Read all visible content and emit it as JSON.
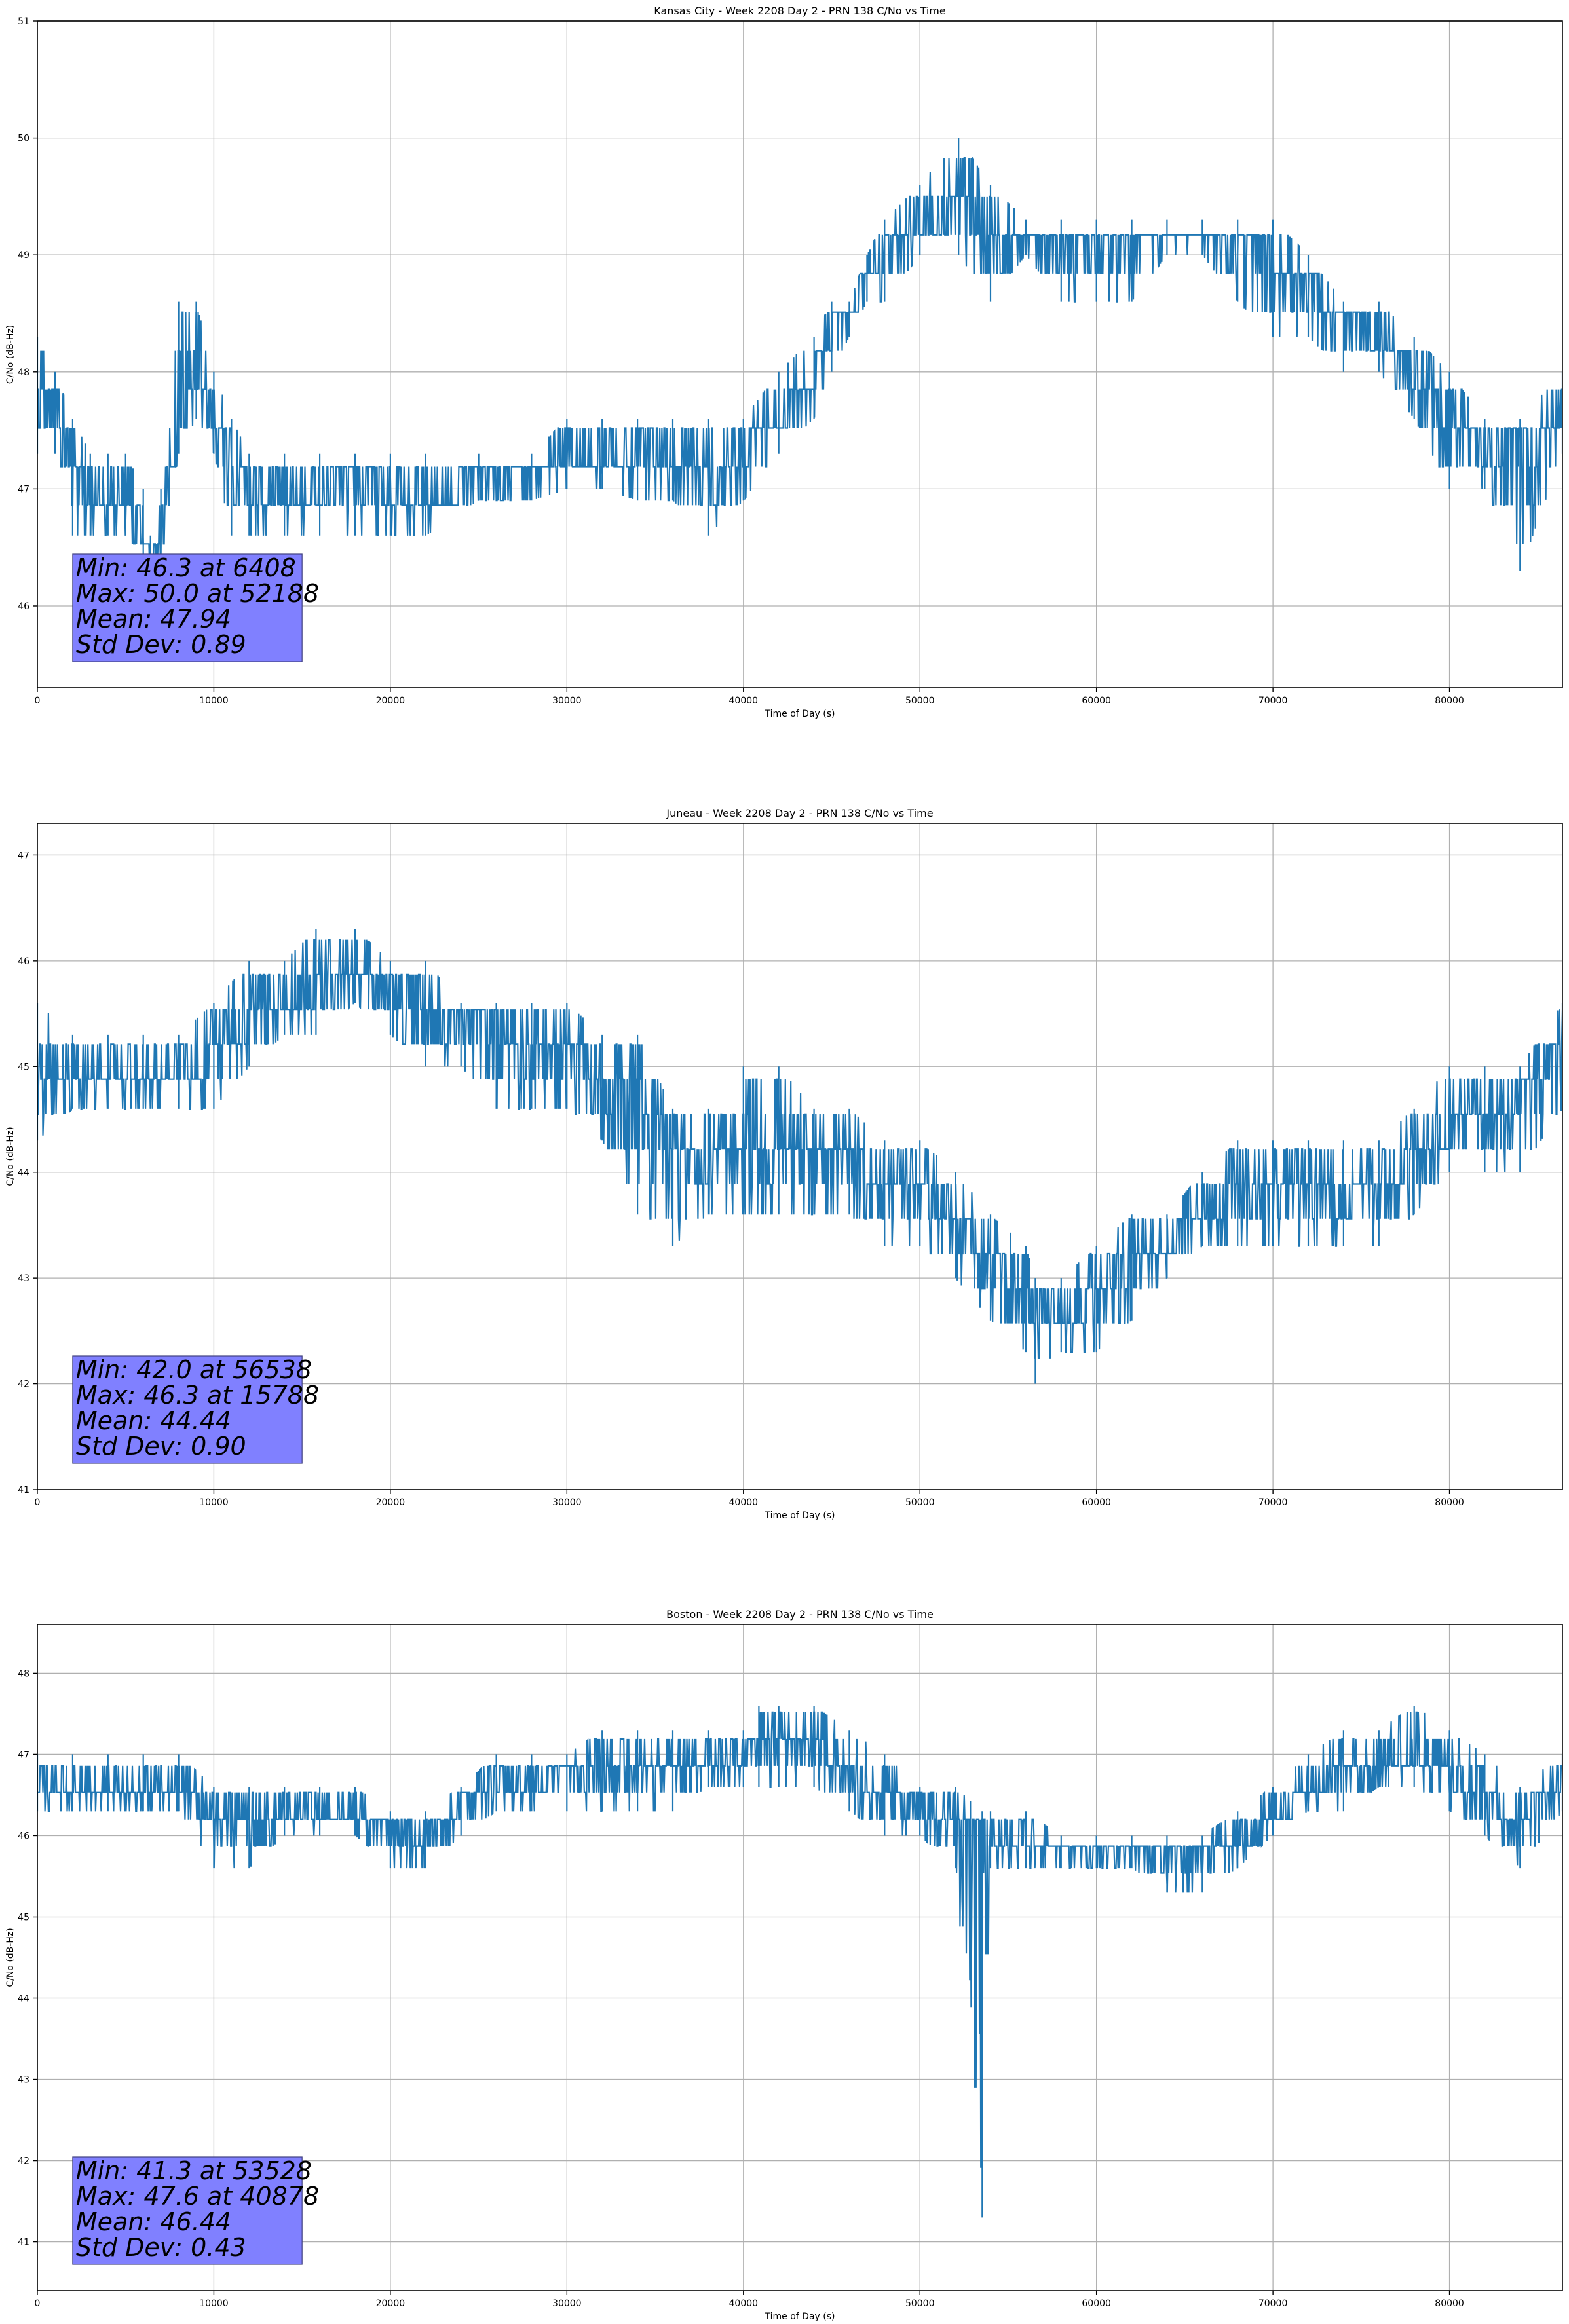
{
  "figure": {
    "background": "#ffffff",
    "line_color": "#1f77b4",
    "grid_color": "#b0b0b0",
    "stats_box_color": "#8080ff"
  },
  "chart_data": [
    {
      "type": "line",
      "title": "Kansas City - Week 2208 Day 2 - PRN 138 C/No vs Time",
      "xlabel": "Time of Day (s)",
      "ylabel": "C/No (dB-Hz)",
      "xlim": [
        0,
        86400
      ],
      "ylim": [
        45.3,
        51
      ],
      "xticks": [
        0,
        10000,
        20000,
        30000,
        40000,
        50000,
        60000,
        70000,
        80000
      ],
      "yticks": [
        46,
        47,
        48,
        49,
        50,
        51
      ],
      "grid": true,
      "legend": "none",
      "stats": [
        "Min: 46.3 at 6408",
        "Max: 50.0 at 52188",
        "Mean: 47.94",
        "Std Dev: 0.89"
      ],
      "series": [
        {
          "x": [
            0,
            1000,
            2000,
            3000,
            4000,
            5000,
            6000,
            6408,
            7000,
            8000,
            9000,
            10000,
            11000,
            12000,
            14000,
            16000,
            18000,
            20000,
            22000,
            25000,
            28000,
            30000,
            32000,
            34000,
            36000,
            38000,
            40000,
            42000,
            44000,
            45000,
            46000,
            47000,
            48000,
            50000,
            52188,
            54000,
            56000,
            58000,
            60000,
            62000,
            64000,
            66000,
            68000,
            70000,
            72000,
            74000,
            76000,
            78000,
            80000,
            82000,
            84000,
            86400
          ],
          "y": [
            48.0,
            47.8,
            47.3,
            47.0,
            46.8,
            47.0,
            46.6,
            46.3,
            46.6,
            47.6,
            48.0,
            47.6,
            47.3,
            47.0,
            46.9,
            47.0,
            47.1,
            47.0,
            46.9,
            47.1,
            47.2,
            47.2,
            47.2,
            47.4,
            47.3,
            47.2,
            47.3,
            47.6,
            48.0,
            48.3,
            48.5,
            48.8,
            49.0,
            49.2,
            49.4,
            49.2,
            49.1,
            49.1,
            49.0,
            49.1,
            49.1,
            49.1,
            49.1,
            49.0,
            48.8,
            48.5,
            48.2,
            48.0,
            47.6,
            47.3,
            47.4,
            47.6
          ],
          "low": [
            47.3,
            47.3,
            46.6,
            46.6,
            46.6,
            46.6,
            46.3,
            46.3,
            46.3,
            47.3,
            47.6,
            47.3,
            46.6,
            46.6,
            46.6,
            46.6,
            46.6,
            46.6,
            46.6,
            46.9,
            46.9,
            47.0,
            47.0,
            46.9,
            46.9,
            46.6,
            46.9,
            47.3,
            47.6,
            48.0,
            48.3,
            48.6,
            48.6,
            49.0,
            49.0,
            48.6,
            49.0,
            48.6,
            48.6,
            48.6,
            49.0,
            49.0,
            48.6,
            48.3,
            48.3,
            48.0,
            48.0,
            47.6,
            47.0,
            47.0,
            46.3,
            47.3
          ],
          "high": [
            48.3,
            48.0,
            47.6,
            47.3,
            47.3,
            47.3,
            47.0,
            46.6,
            47.0,
            48.6,
            48.6,
            48.0,
            47.6,
            47.3,
            47.3,
            47.3,
            47.3,
            47.3,
            47.3,
            47.3,
            47.3,
            47.6,
            47.6,
            47.6,
            47.6,
            47.6,
            47.6,
            48.0,
            48.3,
            48.6,
            48.6,
            49.0,
            49.3,
            49.6,
            50.0,
            49.6,
            49.3,
            49.3,
            49.3,
            49.3,
            49.3,
            49.3,
            49.3,
            49.3,
            49.0,
            48.6,
            48.6,
            48.3,
            48.0,
            47.6,
            47.6,
            48.0
          ]
        }
      ]
    },
    {
      "type": "line",
      "title": "Juneau - Week 2208 Day 2 - PRN 138 C/No vs Time",
      "xlabel": "Time of Day (s)",
      "ylabel": "C/No (dB-Hz)",
      "xlim": [
        0,
        86400
      ],
      "ylim": [
        41,
        47.3
      ],
      "xticks": [
        0,
        10000,
        20000,
        30000,
        40000,
        50000,
        60000,
        70000,
        80000
      ],
      "yticks": [
        41,
        42,
        43,
        44,
        45,
        46,
        47
      ],
      "grid": true,
      "legend": "none",
      "stats": [
        "Min: 42.0 at 56538",
        "Max: 46.3 at 15788",
        "Mean: 44.44",
        "Std Dev: 0.90"
      ],
      "series": [
        {
          "x": [
            0,
            2000,
            4000,
            6000,
            8000,
            10000,
            12000,
            14000,
            15788,
            18000,
            20000,
            22000,
            24000,
            26000,
            28000,
            30000,
            32000,
            34000,
            36000,
            38000,
            40000,
            42000,
            44000,
            46000,
            48000,
            50000,
            52000,
            54000,
            56000,
            56538,
            58000,
            60000,
            62000,
            64000,
            66000,
            68000,
            70000,
            72000,
            74000,
            76000,
            78000,
            80000,
            82000,
            84000,
            86400
          ],
          "y": [
            45.0,
            45.0,
            44.9,
            44.8,
            44.8,
            45.1,
            45.4,
            45.5,
            45.7,
            46.0,
            45.9,
            45.7,
            45.5,
            45.4,
            45.3,
            45.1,
            45.0,
            44.8,
            44.1,
            44.0,
            44.4,
            44.3,
            44.1,
            44.1,
            44.0,
            43.8,
            43.5,
            43.3,
            42.8,
            42.6,
            42.6,
            42.8,
            43.1,
            43.3,
            43.6,
            43.8,
            43.9,
            43.8,
            43.7,
            43.8,
            44.1,
            44.4,
            44.6,
            44.7,
            45.2
          ],
          "low": [
            44.3,
            44.6,
            44.6,
            44.6,
            44.6,
            44.6,
            45.0,
            45.3,
            45.3,
            45.6,
            45.3,
            45.0,
            45.0,
            44.6,
            44.6,
            44.6,
            44.3,
            43.6,
            43.3,
            43.6,
            43.6,
            43.6,
            43.6,
            43.6,
            43.3,
            43.3,
            43.0,
            42.6,
            42.3,
            42.0,
            42.3,
            42.3,
            42.6,
            43.0,
            43.3,
            43.3,
            43.3,
            43.3,
            43.3,
            43.3,
            43.6,
            44.0,
            44.0,
            44.0,
            44.6
          ],
          "high": [
            45.6,
            45.3,
            45.3,
            45.3,
            45.3,
            45.6,
            46.0,
            46.0,
            46.3,
            46.3,
            46.0,
            46.0,
            45.6,
            45.6,
            45.6,
            45.6,
            45.3,
            45.3,
            44.6,
            44.6,
            45.0,
            45.0,
            44.6,
            44.6,
            44.3,
            44.3,
            44.0,
            43.6,
            43.3,
            43.0,
            43.0,
            43.3,
            43.6,
            43.6,
            44.0,
            44.3,
            44.3,
            44.3,
            44.3,
            44.3,
            44.6,
            45.0,
            45.0,
            45.0,
            45.6
          ]
        }
      ]
    },
    {
      "type": "line",
      "title": "Boston - Week 2208 Day 2 - PRN 138 C/No vs Time",
      "xlabel": "Time of Day (s)",
      "ylabel": "C/No (dB-Hz)",
      "xlim": [
        0,
        86400
      ],
      "ylim": [
        40.4,
        48.6
      ],
      "xticks": [
        0,
        10000,
        20000,
        30000,
        40000,
        50000,
        60000,
        70000,
        80000
      ],
      "yticks": [
        41,
        42,
        43,
        44,
        45,
        46,
        47,
        48
      ],
      "grid": true,
      "legend": "none",
      "stats": [
        "Min: 41.3 at 53528",
        "Max: 47.6 at 40878",
        "Mean: 46.44",
        "Std Dev: 0.43"
      ],
      "series": [
        {
          "x": [
            0,
            2000,
            4000,
            6000,
            8000,
            10000,
            12000,
            14000,
            16000,
            18000,
            20000,
            22000,
            24000,
            26000,
            28000,
            30000,
            32000,
            34000,
            36000,
            38000,
            40000,
            40878,
            42000,
            44000,
            46000,
            48000,
            50000,
            52000,
            53528,
            54000,
            56000,
            58000,
            60000,
            62000,
            64000,
            66000,
            68000,
            70000,
            72000,
            74000,
            76000,
            78000,
            80000,
            82000,
            84000,
            86400
          ],
          "y": [
            46.5,
            46.5,
            46.6,
            46.6,
            46.5,
            46.2,
            46.2,
            46.3,
            46.3,
            46.2,
            46.1,
            46.0,
            46.4,
            46.5,
            46.6,
            46.8,
            46.9,
            46.8,
            46.8,
            46.9,
            47.0,
            47.1,
            47.1,
            47.1,
            46.8,
            46.5,
            46.4,
            46.2,
            46.1,
            46.0,
            45.9,
            45.8,
            45.8,
            45.8,
            45.8,
            45.8,
            45.9,
            46.2,
            46.5,
            46.8,
            46.9,
            47.0,
            46.7,
            46.4,
            46.3,
            46.6
          ],
          "low": [
            46.3,
            46.3,
            46.3,
            46.3,
            46.3,
            45.6,
            45.6,
            46.0,
            46.0,
            46.0,
            45.6,
            45.6,
            46.0,
            46.3,
            46.3,
            46.3,
            46.3,
            46.3,
            46.3,
            46.6,
            46.6,
            46.6,
            46.6,
            46.6,
            46.3,
            46.0,
            46.0,
            45.6,
            41.3,
            45.6,
            45.6,
            45.6,
            45.6,
            45.6,
            45.3,
            45.3,
            45.6,
            46.0,
            46.3,
            46.3,
            46.6,
            46.6,
            46.3,
            46.0,
            45.6,
            46.3
          ],
          "high": [
            47.0,
            47.0,
            47.0,
            47.0,
            47.0,
            46.6,
            46.6,
            46.6,
            46.6,
            46.6,
            46.3,
            46.3,
            46.6,
            47.0,
            47.0,
            47.0,
            47.3,
            47.3,
            47.3,
            47.3,
            47.3,
            47.6,
            47.6,
            47.6,
            47.3,
            47.0,
            46.6,
            46.6,
            46.3,
            46.3,
            46.3,
            46.0,
            46.0,
            46.0,
            46.0,
            46.0,
            46.3,
            46.6,
            47.0,
            47.3,
            47.3,
            47.6,
            47.3,
            47.0,
            46.6,
            47.0
          ]
        }
      ]
    }
  ]
}
